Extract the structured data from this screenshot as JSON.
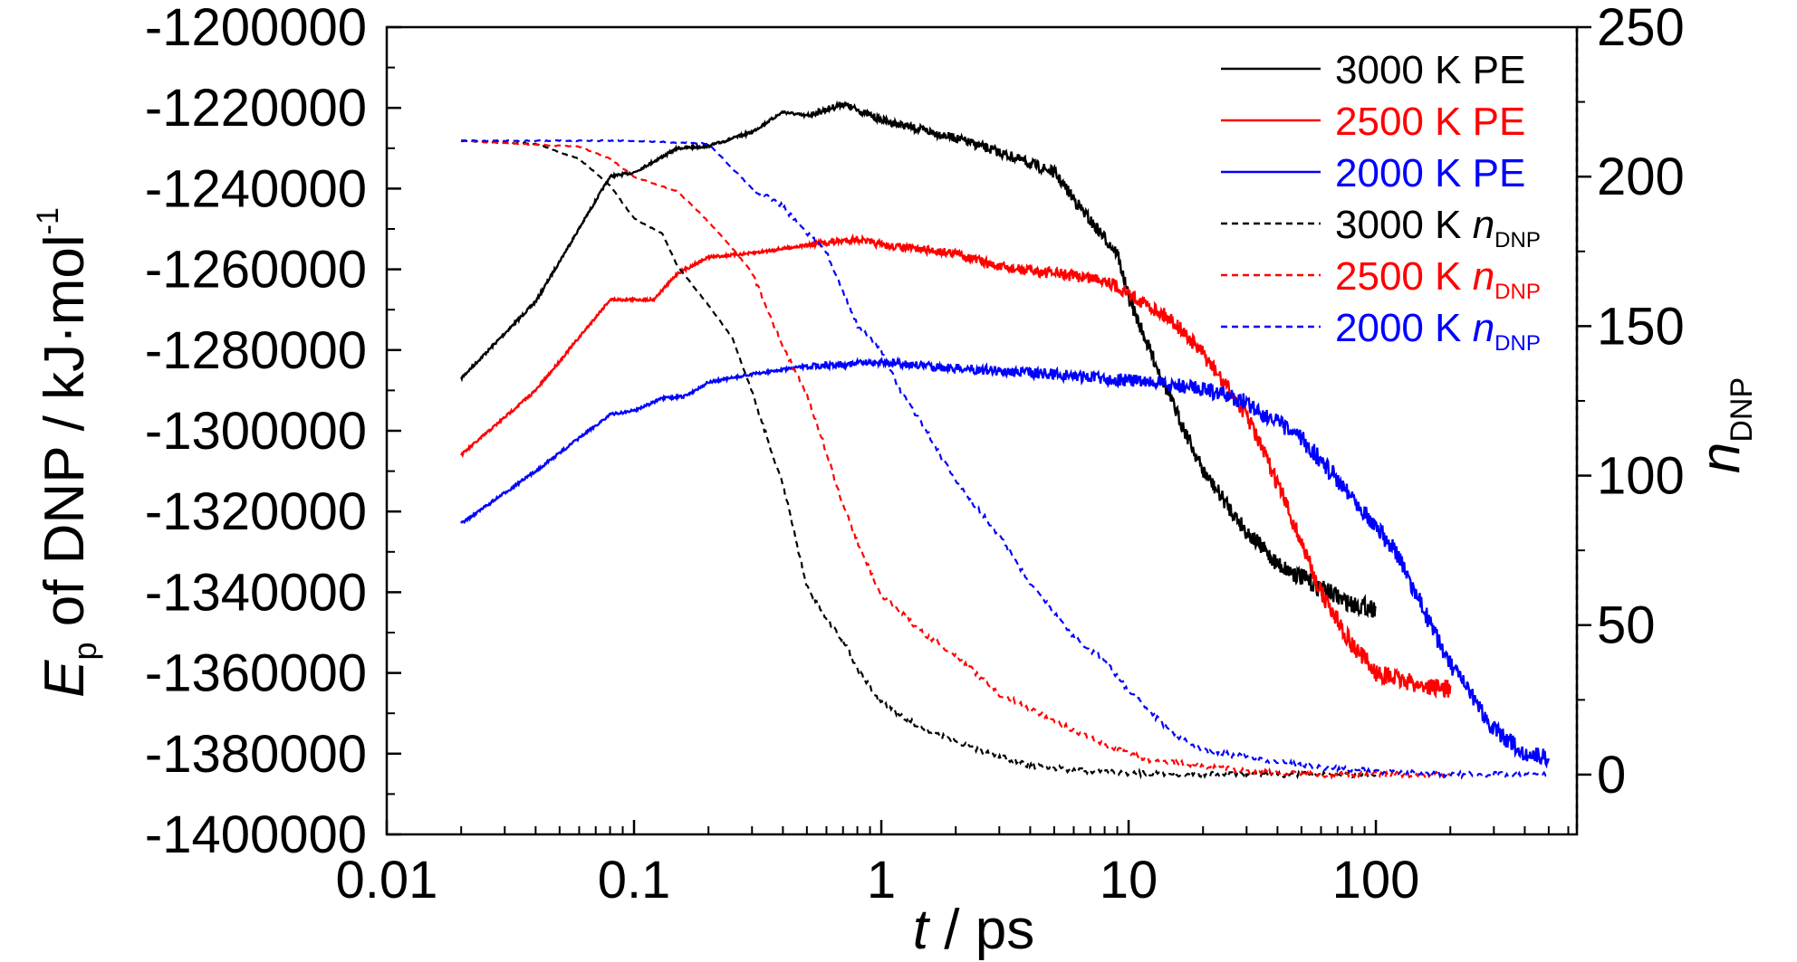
{
  "chart_data": {
    "type": "line",
    "x_scale": "log",
    "xlim": [
      0.01,
      650
    ],
    "y_left_lim": [
      -1400000,
      -1200000
    ],
    "y_right_lim": [
      -20,
      250
    ],
    "x_ticks": [
      0.01,
      0.1,
      1,
      10,
      100
    ],
    "x_tick_labels": [
      "0.01",
      "0.1",
      "1",
      "10",
      "100"
    ],
    "y_left_ticks": [
      -1200000,
      -1220000,
      -1240000,
      -1260000,
      -1280000,
      -1300000,
      -1320000,
      -1340000,
      -1360000,
      -1380000,
      -1400000
    ],
    "y_left_tick_labels": [
      "-1200000",
      "-1220000",
      "-1240000",
      "-1260000",
      "-1280000",
      "-1300000",
      "-1320000",
      "-1340000",
      "-1360000",
      "-1380000",
      "-1400000"
    ],
    "y_right_ticks": [
      250,
      200,
      150,
      100,
      50,
      0
    ],
    "y_right_tick_labels": [
      "250",
      "200",
      "150",
      "100",
      "50",
      "0"
    ],
    "xlabel": {
      "italic": "t",
      "rest": " / ps"
    },
    "ylabel_left": {
      "main_italic": "E",
      "main_sub": "p",
      "rest": " of DNP / kJ·mol",
      "sup": "-1"
    },
    "ylabel_right": {
      "main_italic": "n",
      "main_sub": "DNP"
    },
    "legend_position": "top-right",
    "series": [
      {
        "name": "3000 K PE",
        "label_main": "3000 K PE",
        "label_sub": "",
        "axis": "left",
        "style": "solid",
        "color": "#000000",
        "points": [
          [
            0.02,
            -1287000
          ],
          [
            0.04,
            -1268000
          ],
          [
            0.08,
            -1237000
          ],
          [
            0.1,
            -1236000
          ],
          [
            0.15,
            -1230000
          ],
          [
            0.2,
            -1229500
          ],
          [
            0.3,
            -1226000
          ],
          [
            0.4,
            -1221000
          ],
          [
            0.5,
            -1222000
          ],
          [
            0.7,
            -1219000
          ],
          [
            1,
            -1223000
          ],
          [
            2,
            -1227500
          ],
          [
            3,
            -1231000
          ],
          [
            5,
            -1236000
          ],
          [
            7,
            -1248000
          ],
          [
            9,
            -1256000
          ],
          [
            10,
            -1267000
          ],
          [
            12,
            -1279000
          ],
          [
            15,
            -1293000
          ],
          [
            20,
            -1310000
          ],
          [
            30,
            -1325000
          ],
          [
            40,
            -1333000
          ],
          [
            60,
            -1339000
          ],
          [
            80,
            -1343000
          ],
          [
            100,
            -1344000
          ]
        ]
      },
      {
        "name": "2500 K PE",
        "label_main": "2500 K PE",
        "label_sub": "",
        "axis": "left",
        "style": "solid",
        "color": "#ff0000",
        "points": [
          [
            0.02,
            -1306000
          ],
          [
            0.04,
            -1290000
          ],
          [
            0.08,
            -1267500
          ],
          [
            0.12,
            -1267500
          ],
          [
            0.15,
            -1261000
          ],
          [
            0.2,
            -1257000
          ],
          [
            0.3,
            -1256000
          ],
          [
            0.5,
            -1254000
          ],
          [
            0.8,
            -1252500
          ],
          [
            1,
            -1254000
          ],
          [
            2,
            -1256000
          ],
          [
            3,
            -1259500
          ],
          [
            5,
            -1261000
          ],
          [
            8,
            -1262500
          ],
          [
            10,
            -1266000
          ],
          [
            15,
            -1272500
          ],
          [
            20,
            -1281000
          ],
          [
            30,
            -1296000
          ],
          [
            40,
            -1313000
          ],
          [
            60,
            -1340000
          ],
          [
            80,
            -1353000
          ],
          [
            100,
            -1360000
          ],
          [
            150,
            -1363000
          ],
          [
            200,
            -1364000
          ]
        ]
      },
      {
        "name": "2000 K PE",
        "label_main": "2000 K PE",
        "label_sub": "",
        "axis": "left",
        "style": "solid",
        "color": "#0000ff",
        "points": [
          [
            0.02,
            -1323000
          ],
          [
            0.04,
            -1310000
          ],
          [
            0.08,
            -1296000
          ],
          [
            0.1,
            -1295000
          ],
          [
            0.13,
            -1292000
          ],
          [
            0.16,
            -1291500
          ],
          [
            0.2,
            -1288000
          ],
          [
            0.3,
            -1286000
          ],
          [
            0.5,
            -1284000
          ],
          [
            1,
            -1283000
          ],
          [
            2,
            -1284500
          ],
          [
            5,
            -1286000
          ],
          [
            10,
            -1287500
          ],
          [
            20,
            -1289500
          ],
          [
            30,
            -1293000
          ],
          [
            50,
            -1302000
          ],
          [
            80,
            -1316000
          ],
          [
            120,
            -1330000
          ],
          [
            200,
            -1358000
          ],
          [
            300,
            -1374000
          ],
          [
            400,
            -1380000
          ],
          [
            500,
            -1381000
          ]
        ]
      },
      {
        "name": "3000 K nDNP",
        "label_main": "3000 K ",
        "label_sub": "DNP",
        "axis": "right",
        "style": "dashed",
        "color": "#000000",
        "points": [
          [
            0.02,
            212
          ],
          [
            0.04,
            211
          ],
          [
            0.06,
            206
          ],
          [
            0.08,
            197
          ],
          [
            0.1,
            186
          ],
          [
            0.13,
            181
          ],
          [
            0.15,
            170
          ],
          [
            0.2,
            157
          ],
          [
            0.25,
            146
          ],
          [
            0.3,
            128
          ],
          [
            0.4,
            97
          ],
          [
            0.5,
            63
          ],
          [
            0.6,
            52
          ],
          [
            0.7,
            45
          ],
          [
            0.8,
            35
          ],
          [
            1,
            24
          ],
          [
            1.5,
            15
          ],
          [
            2,
            11
          ],
          [
            3,
            6
          ],
          [
            4,
            3
          ],
          [
            6,
            1.5
          ],
          [
            10,
            0.5
          ],
          [
            20,
            0
          ],
          [
            100,
            0
          ]
        ]
      },
      {
        "name": "2500 K nDNP",
        "label_main": "2500 K ",
        "label_sub": "DNP",
        "axis": "right",
        "style": "dashed",
        "color": "#ff0000",
        "points": [
          [
            0.02,
            212
          ],
          [
            0.06,
            210
          ],
          [
            0.08,
            206
          ],
          [
            0.1,
            200
          ],
          [
            0.15,
            195
          ],
          [
            0.2,
            185
          ],
          [
            0.25,
            176
          ],
          [
            0.3,
            168
          ],
          [
            0.4,
            143
          ],
          [
            0.5,
            127
          ],
          [
            0.6,
            108
          ],
          [
            0.7,
            90
          ],
          [
            0.8,
            78
          ],
          [
            1,
            60
          ],
          [
            1.5,
            47
          ],
          [
            2,
            40
          ],
          [
            3,
            27
          ],
          [
            5,
            18
          ],
          [
            8,
            10
          ],
          [
            12,
            5
          ],
          [
            20,
            3
          ],
          [
            30,
            1
          ],
          [
            60,
            0
          ],
          [
            200,
            0
          ]
        ]
      },
      {
        "name": "2000 K nDNP",
        "label_main": "2000 K ",
        "label_sub": "DNP",
        "axis": "right",
        "style": "dashed",
        "color": "#0000ff",
        "points": [
          [
            0.02,
            212
          ],
          [
            0.1,
            212
          ],
          [
            0.2,
            211
          ],
          [
            0.3,
            196
          ],
          [
            0.4,
            190
          ],
          [
            0.5,
            181
          ],
          [
            0.6,
            175
          ],
          [
            0.8,
            150
          ],
          [
            1,
            142
          ],
          [
            1.2,
            128
          ],
          [
            1.5,
            116
          ],
          [
            2,
            98
          ],
          [
            3,
            80
          ],
          [
            4,
            64
          ],
          [
            6,
            46
          ],
          [
            8,
            38
          ],
          [
            10,
            28
          ],
          [
            15,
            14
          ],
          [
            20,
            8
          ],
          [
            30,
            6
          ],
          [
            50,
            3
          ],
          [
            100,
            1
          ],
          [
            200,
            0
          ],
          [
            500,
            0
          ]
        ]
      }
    ]
  }
}
